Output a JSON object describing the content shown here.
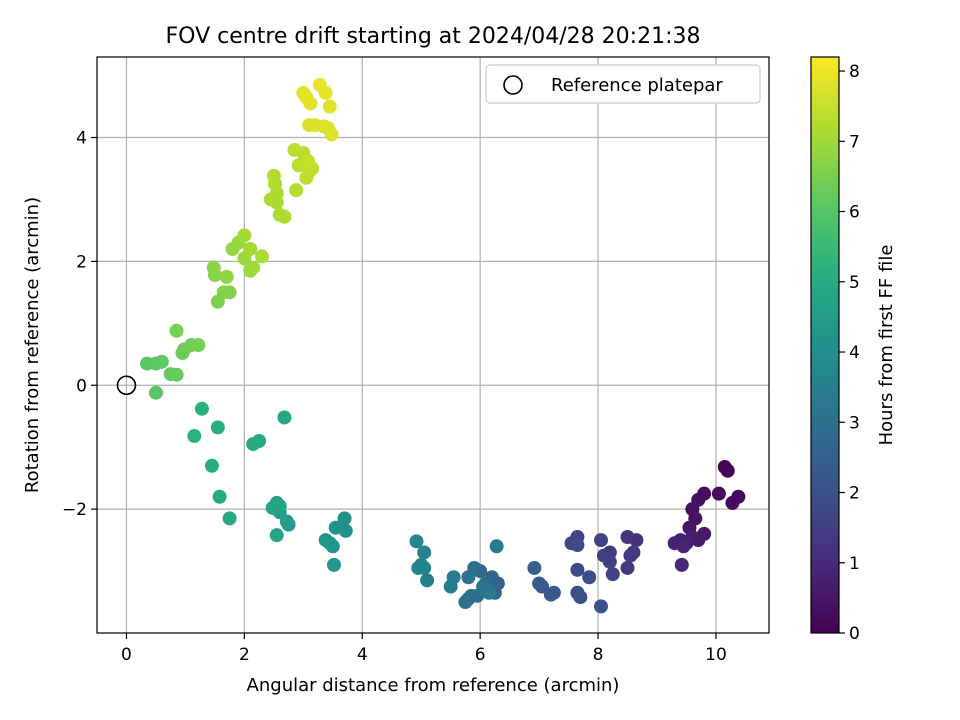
{
  "chart_data": {
    "type": "scatter",
    "title": "FOV centre drift starting at 2024/04/28 20:21:38",
    "xlabel": "Angular distance from reference (arcmin)",
    "ylabel": "Rotation from reference (arcmin)",
    "xlim": [
      -0.5,
      10.9
    ],
    "ylim": [
      -4.0,
      5.3
    ],
    "xticks": [
      0,
      2,
      4,
      6,
      8,
      10
    ],
    "yticks": [
      -2,
      0,
      2,
      4
    ],
    "grid": true,
    "legend": {
      "position": "top-right",
      "entries": [
        "Reference platepar"
      ]
    },
    "reference_point": {
      "x": 0,
      "y": 0
    },
    "colorbar": {
      "label": "Hours from first FF file",
      "range": [
        0,
        8.2
      ],
      "ticks": [
        0,
        1,
        2,
        3,
        4,
        5,
        6,
        7,
        8
      ],
      "colormap": "viridis"
    },
    "points": [
      {
        "x": 10.15,
        "y": -1.32,
        "t": 0.05
      },
      {
        "x": 10.2,
        "y": -1.38,
        "t": 0.1
      },
      {
        "x": 10.38,
        "y": -1.8,
        "t": 0.15
      },
      {
        "x": 10.28,
        "y": -1.9,
        "t": 0.2
      },
      {
        "x": 10.05,
        "y": -1.75,
        "t": 0.25
      },
      {
        "x": 9.8,
        "y": -1.75,
        "t": 0.3
      },
      {
        "x": 9.7,
        "y": -1.85,
        "t": 0.35
      },
      {
        "x": 9.6,
        "y": -2.0,
        "t": 0.4
      },
      {
        "x": 9.65,
        "y": -2.15,
        "t": 0.45
      },
      {
        "x": 9.55,
        "y": -2.3,
        "t": 0.5
      },
      {
        "x": 9.8,
        "y": -2.4,
        "t": 0.55
      },
      {
        "x": 9.7,
        "y": -2.5,
        "t": 0.6
      },
      {
        "x": 9.6,
        "y": -2.45,
        "t": 0.65
      },
      {
        "x": 9.5,
        "y": -2.55,
        "t": 0.7
      },
      {
        "x": 9.4,
        "y": -2.5,
        "t": 0.75
      },
      {
        "x": 9.3,
        "y": -2.55,
        "t": 0.8
      },
      {
        "x": 9.45,
        "y": -2.6,
        "t": 0.85
      },
      {
        "x": 9.42,
        "y": -2.9,
        "t": 0.9
      },
      {
        "x": 8.65,
        "y": -2.5,
        "t": 1.2
      },
      {
        "x": 8.5,
        "y": -2.45,
        "t": 1.25
      },
      {
        "x": 8.6,
        "y": -2.7,
        "t": 1.3
      },
      {
        "x": 8.55,
        "y": -2.75,
        "t": 1.35
      },
      {
        "x": 8.5,
        "y": -2.95,
        "t": 1.4
      },
      {
        "x": 8.2,
        "y": -2.7,
        "t": 1.45
      },
      {
        "x": 8.1,
        "y": -2.75,
        "t": 1.5
      },
      {
        "x": 8.2,
        "y": -2.85,
        "t": 1.55
      },
      {
        "x": 8.25,
        "y": -3.05,
        "t": 1.6
      },
      {
        "x": 8.05,
        "y": -2.5,
        "t": 1.65
      },
      {
        "x": 7.65,
        "y": -2.45,
        "t": 1.7
      },
      {
        "x": 7.55,
        "y": -2.55,
        "t": 1.75
      },
      {
        "x": 7.65,
        "y": -2.58,
        "t": 1.8
      },
      {
        "x": 7.65,
        "y": -2.98,
        "t": 1.85
      },
      {
        "x": 7.85,
        "y": -3.1,
        "t": 1.9
      },
      {
        "x": 7.65,
        "y": -3.35,
        "t": 1.95
      },
      {
        "x": 7.7,
        "y": -3.42,
        "t": 2.0
      },
      {
        "x": 8.05,
        "y": -3.57,
        "t": 2.05
      },
      {
        "x": 7.25,
        "y": -3.35,
        "t": 2.2
      },
      {
        "x": 7.2,
        "y": -3.38,
        "t": 2.25
      },
      {
        "x": 7.0,
        "y": -3.2,
        "t": 2.3
      },
      {
        "x": 7.05,
        "y": -3.25,
        "t": 2.35
      },
      {
        "x": 6.92,
        "y": -2.95,
        "t": 2.4
      },
      {
        "x": 6.3,
        "y": -3.2,
        "t": 2.6
      },
      {
        "x": 6.2,
        "y": -3.1,
        "t": 2.65
      },
      {
        "x": 6.25,
        "y": -3.35,
        "t": 2.7
      },
      {
        "x": 6.1,
        "y": -3.2,
        "t": 2.75
      },
      {
        "x": 6.0,
        "y": -3.0,
        "t": 2.8
      },
      {
        "x": 5.95,
        "y": -3.4,
        "t": 2.85
      },
      {
        "x": 5.9,
        "y": -2.95,
        "t": 2.9
      },
      {
        "x": 5.85,
        "y": -3.4,
        "t": 2.95
      },
      {
        "x": 5.8,
        "y": -3.45,
        "t": 3.0
      },
      {
        "x": 5.75,
        "y": -3.5,
        "t": 3.05
      },
      {
        "x": 5.8,
        "y": -3.1,
        "t": 3.1
      },
      {
        "x": 6.05,
        "y": -3.25,
        "t": 3.15
      },
      {
        "x": 6.1,
        "y": -3.3,
        "t": 3.2
      },
      {
        "x": 6.15,
        "y": -3.35,
        "t": 3.25
      },
      {
        "x": 6.28,
        "y": -2.6,
        "t": 3.3
      },
      {
        "x": 5.55,
        "y": -3.1,
        "t": 3.4
      },
      {
        "x": 5.5,
        "y": -3.25,
        "t": 3.45
      },
      {
        "x": 5.1,
        "y": -3.15,
        "t": 3.5
      },
      {
        "x": 5.05,
        "y": -2.95,
        "t": 3.55
      },
      {
        "x": 5.0,
        "y": -2.9,
        "t": 3.6
      },
      {
        "x": 5.05,
        "y": -2.7,
        "t": 3.65
      },
      {
        "x": 4.95,
        "y": -2.95,
        "t": 3.7
      },
      {
        "x": 4.92,
        "y": -2.52,
        "t": 3.75
      },
      {
        "x": 3.7,
        "y": -2.15,
        "t": 4.0
      },
      {
        "x": 3.72,
        "y": -2.35,
        "t": 4.05
      },
      {
        "x": 3.55,
        "y": -2.3,
        "t": 4.1
      },
      {
        "x": 3.45,
        "y": -2.55,
        "t": 4.15
      },
      {
        "x": 3.38,
        "y": -2.5,
        "t": 4.2
      },
      {
        "x": 3.5,
        "y": -2.6,
        "t": 4.25
      },
      {
        "x": 3.52,
        "y": -2.9,
        "t": 4.3
      },
      {
        "x": 2.75,
        "y": -2.25,
        "t": 4.5
      },
      {
        "x": 2.72,
        "y": -2.2,
        "t": 4.55
      },
      {
        "x": 2.6,
        "y": -2.05,
        "t": 4.6
      },
      {
        "x": 2.55,
        "y": -1.9,
        "t": 4.65
      },
      {
        "x": 2.48,
        "y": -1.98,
        "t": 4.7
      },
      {
        "x": 2.6,
        "y": -1.95,
        "t": 4.75
      },
      {
        "x": 2.55,
        "y": -2.42,
        "t": 4.8
      },
      {
        "x": 2.68,
        "y": -0.52,
        "t": 4.85
      },
      {
        "x": 2.25,
        "y": -0.9,
        "t": 4.9
      },
      {
        "x": 2.15,
        "y": -0.95,
        "t": 4.95
      },
      {
        "x": 1.75,
        "y": -2.15,
        "t": 5.0
      },
      {
        "x": 1.58,
        "y": -1.8,
        "t": 5.05
      },
      {
        "x": 1.45,
        "y": -1.3,
        "t": 5.1
      },
      {
        "x": 1.55,
        "y": -0.68,
        "t": 5.15
      },
      {
        "x": 1.28,
        "y": -0.38,
        "t": 5.2
      },
      {
        "x": 1.15,
        "y": -0.82,
        "t": 5.25
      },
      {
        "x": 0.5,
        "y": -0.12,
        "t": 6.0
      },
      {
        "x": 0.35,
        "y": 0.35,
        "t": 6.05
      },
      {
        "x": 0.5,
        "y": 0.35,
        "t": 6.1
      },
      {
        "x": 0.6,
        "y": 0.38,
        "t": 6.15
      },
      {
        "x": 0.75,
        "y": 0.18,
        "t": 6.2
      },
      {
        "x": 0.85,
        "y": 0.17,
        "t": 6.25
      },
      {
        "x": 0.95,
        "y": 0.52,
        "t": 6.3
      },
      {
        "x": 0.98,
        "y": 0.58,
        "t": 6.35
      },
      {
        "x": 1.1,
        "y": 0.65,
        "t": 6.4
      },
      {
        "x": 1.22,
        "y": 0.65,
        "t": 6.45
      },
      {
        "x": 0.85,
        "y": 0.88,
        "t": 6.5
      },
      {
        "x": 1.55,
        "y": 1.35,
        "t": 6.55
      },
      {
        "x": 1.65,
        "y": 1.5,
        "t": 6.6
      },
      {
        "x": 1.75,
        "y": 1.5,
        "t": 6.65
      },
      {
        "x": 1.5,
        "y": 1.78,
        "t": 6.7
      },
      {
        "x": 1.48,
        "y": 1.9,
        "t": 6.75
      },
      {
        "x": 1.7,
        "y": 1.75,
        "t": 6.8
      },
      {
        "x": 1.8,
        "y": 2.2,
        "t": 6.85
      },
      {
        "x": 1.9,
        "y": 2.3,
        "t": 6.9
      },
      {
        "x": 2.0,
        "y": 2.05,
        "t": 6.95
      },
      {
        "x": 2.1,
        "y": 1.85,
        "t": 7.0
      },
      {
        "x": 2.15,
        "y": 1.9,
        "t": 7.02
      },
      {
        "x": 2.1,
        "y": 2.2,
        "t": 7.04
      },
      {
        "x": 2.0,
        "y": 2.42,
        "t": 7.06
      },
      {
        "x": 2.3,
        "y": 2.08,
        "t": 7.08
      },
      {
        "x": 2.45,
        "y": 3.0,
        "t": 7.1
      },
      {
        "x": 2.55,
        "y": 2.95,
        "t": 7.12
      },
      {
        "x": 2.6,
        "y": 2.75,
        "t": 7.14
      },
      {
        "x": 2.68,
        "y": 2.72,
        "t": 7.16
      },
      {
        "x": 2.55,
        "y": 3.1,
        "t": 7.18
      },
      {
        "x": 2.52,
        "y": 3.25,
        "t": 7.2
      },
      {
        "x": 2.5,
        "y": 3.38,
        "t": 7.22
      },
      {
        "x": 2.88,
        "y": 3.15,
        "t": 7.3
      },
      {
        "x": 2.92,
        "y": 3.55,
        "t": 7.32
      },
      {
        "x": 3.0,
        "y": 3.75,
        "t": 7.34
      },
      {
        "x": 2.85,
        "y": 3.8,
        "t": 7.36
      },
      {
        "x": 3.05,
        "y": 3.35,
        "t": 7.38
      },
      {
        "x": 3.1,
        "y": 3.45,
        "t": 7.4
      },
      {
        "x": 3.15,
        "y": 3.5,
        "t": 7.42
      },
      {
        "x": 3.08,
        "y": 3.62,
        "t": 7.44
      },
      {
        "x": 3.1,
        "y": 4.2,
        "t": 7.7
      },
      {
        "x": 3.2,
        "y": 4.2,
        "t": 7.72
      },
      {
        "x": 3.35,
        "y": 4.18,
        "t": 7.74
      },
      {
        "x": 3.42,
        "y": 4.15,
        "t": 7.76
      },
      {
        "x": 3.48,
        "y": 4.05,
        "t": 7.78
      },
      {
        "x": 3.45,
        "y": 4.5,
        "t": 7.8
      },
      {
        "x": 3.05,
        "y": 4.65,
        "t": 7.82
      },
      {
        "x": 3.0,
        "y": 4.72,
        "t": 7.84
      },
      {
        "x": 3.12,
        "y": 4.55,
        "t": 7.86
      },
      {
        "x": 3.38,
        "y": 4.72,
        "t": 7.88
      },
      {
        "x": 3.28,
        "y": 4.85,
        "t": 7.9
      }
    ]
  }
}
